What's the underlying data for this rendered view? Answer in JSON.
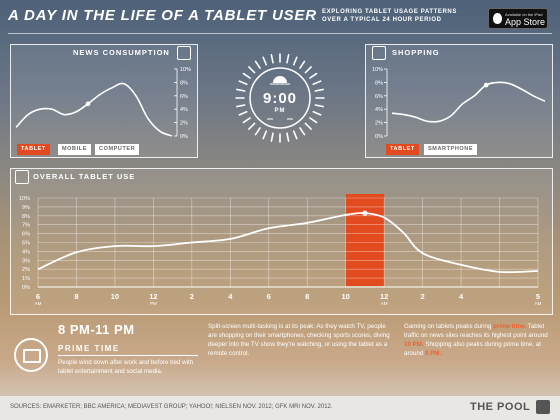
{
  "header": {
    "title": "A DAY IN THE LIFE OF A TABLET USER",
    "subtitle_line1": "EXPLORING TABLET USAGE PATTERNS",
    "subtitle_line2": "OVER A TYPICAL 24 HOUR PERIOD",
    "appstore_small": "Available on the iPad",
    "appstore_big": "App Store"
  },
  "clock": {
    "time": "9:00",
    "ampm": "PM"
  },
  "news_panel": {
    "title": "NEWS CONSUMPTION",
    "icon": "tablet-phone-icon",
    "yticks": [
      "10%",
      "8%",
      "6%",
      "4%",
      "2%",
      "0%"
    ],
    "legend": [
      {
        "label": "TABLET",
        "active": true
      },
      {
        "label": "MOBILE",
        "active": false
      },
      {
        "label": "COMPUTER",
        "active": false
      }
    ]
  },
  "shopping_panel": {
    "title": "SHOPPING",
    "icon": "shopping-bag-icon",
    "yticks": [
      "10%",
      "8%",
      "6%",
      "4%",
      "2%",
      "0%"
    ],
    "legend": [
      {
        "label": "TABLET",
        "active": true
      },
      {
        "label": "SMARTPHONE",
        "active": false
      }
    ]
  },
  "overall_panel": {
    "title": "OVERALL TABLET USE",
    "icon": "tablet-icon"
  },
  "chart_data": [
    {
      "type": "line",
      "title": "NEWS CONSUMPTION",
      "y": [
        1.3,
        3.2,
        4.0,
        4.0,
        3.2,
        3.6,
        4.8,
        6.2,
        7.2,
        7.8,
        6.0,
        2.6,
        0.7,
        0.0
      ],
      "highlight_index": 6,
      "ylim": [
        0,
        10
      ],
      "yticks": [
        "10%",
        "8%",
        "6%",
        "4%",
        "2%",
        "0%"
      ],
      "series": [
        {
          "name": "TABLET"
        }
      ],
      "highlight_color": "#e24a1f"
    },
    {
      "type": "line",
      "title": "SHOPPING",
      "y": [
        3.4,
        3.2,
        2.8,
        2.2,
        2.2,
        3.0,
        4.8,
        6.0,
        7.6,
        8.0,
        7.8,
        7.0,
        6.0,
        5.2
      ],
      "highlight_index": 8,
      "ylim": [
        0,
        10
      ],
      "yticks": [
        "10%",
        "8%",
        "6%",
        "4%",
        "2%",
        "0%"
      ],
      "series": [
        {
          "name": "TABLET"
        }
      ],
      "highlight_color": "#e24a1f"
    },
    {
      "type": "line",
      "title": "OVERALL TABLET USE",
      "categories": [
        "6",
        "8",
        "10",
        "12",
        "2",
        "4",
        "6",
        "8",
        "10",
        "12",
        "2",
        "4",
        "5"
      ],
      "category_sub": [
        "AM",
        "",
        "",
        "PM",
        "",
        "",
        "",
        "",
        "",
        "AM",
        "",
        "",
        "AM"
      ],
      "x": [
        0,
        1,
        2,
        3,
        4,
        5,
        6,
        7,
        8,
        8.5,
        9,
        9.5,
        10,
        11,
        12,
        13
      ],
      "y": [
        2.0,
        3.9,
        4.6,
        4.6,
        5.0,
        5.4,
        6.6,
        7.2,
        8.1,
        8.3,
        7.8,
        6.1,
        3.8,
        2.5,
        1.7,
        1.8
      ],
      "ylim": [
        0,
        10
      ],
      "yticks": [
        "10%",
        "9%",
        "8%",
        "7%",
        "6%",
        "5%",
        "4%",
        "3%",
        "2%",
        "1%",
        "0%"
      ],
      "highlight_x": 8.5,
      "highlight_band": {
        "from": 8,
        "to": 9
      },
      "highlight_color": "#e24a1f",
      "grid": true
    }
  ],
  "prime_time": {
    "range": "8 PM-11 PM",
    "title": "PRIME TIME",
    "description": "People wind down after work and before bed with tablet entertainment and social media."
  },
  "middle_text": "Split-screen multi-tasking is at its peak: As they watch TV, people are shopping on their smartphones, checking sports scores, diving deeper into the TV show they're watching, or using the tablet as a remote control.",
  "right_text": {
    "part1": "Gaming on tablets peaks during",
    "hl1": "prime time.",
    "part2": "Tablet traffic on news sites reaches its highest point around",
    "hl2": "10 PM.",
    "part3": "Shopping also peaks during prime time, at around",
    "hl3": "9 PM."
  },
  "footer": {
    "sources": "SOURCES: EMARKETER; BBC AMERICA; MEDIAVEST GROUP; YAHOO!; NIELSEN NOV. 2012; GFK MRI NOV. 2012.",
    "brand": "THE POOL"
  }
}
